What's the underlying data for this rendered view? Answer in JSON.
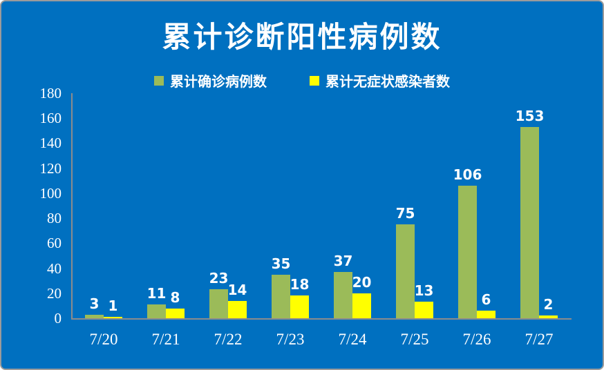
{
  "title": "累计诊断阳性病例数",
  "colors": {
    "background": "#0070C0",
    "confirmed_bar": "#9BBB59",
    "asymptomatic_bar": "#FFFF00",
    "axis_line": "#8C8C8C",
    "text": "#FFFFFF",
    "border": "#9B9B9B"
  },
  "chart_data": {
    "type": "bar",
    "title": "累计诊断阳性病例数",
    "categories": [
      "7/20",
      "7/21",
      "7/22",
      "7/23",
      "7/24",
      "7/25",
      "7/26",
      "7/27"
    ],
    "series": [
      {
        "name": "累计确诊病例数",
        "color": "#9BBB59",
        "values": [
          3,
          11,
          23,
          35,
          37,
          75,
          106,
          153
        ]
      },
      {
        "name": "累计无症状感染者数",
        "color": "#FFFF00",
        "values": [
          1,
          8,
          14,
          18,
          20,
          13,
          6,
          2
        ]
      }
    ],
    "ylim": [
      0,
      180
    ],
    "ytick_step": 20,
    "ytick_labels": [
      "0",
      "20",
      "40",
      "60",
      "80",
      "100",
      "120",
      "140",
      "160",
      "180"
    ],
    "xlabel": "",
    "ylabel": "",
    "grid": false,
    "legend_position": "top",
    "data_labels": true
  }
}
